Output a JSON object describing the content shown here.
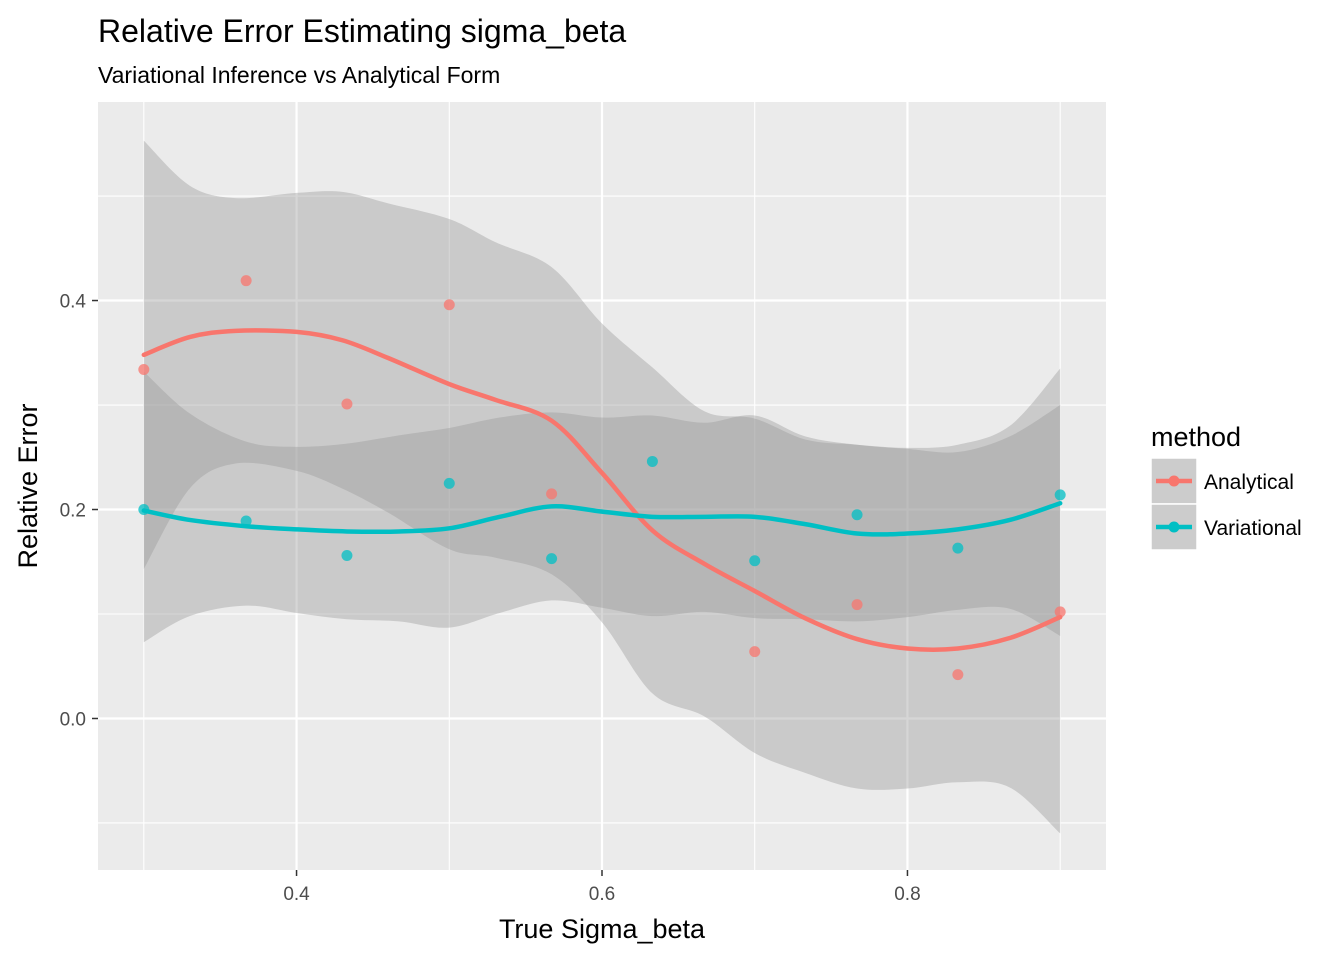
{
  "chart_data": {
    "type": "scatter",
    "title": "Relative Error Estimating sigma_beta",
    "subtitle": "Variational Inference vs Analytical Form",
    "xlabel": "True Sigma_beta",
    "ylabel": "Relative Error",
    "xlim": [
      0.27,
      0.93
    ],
    "ylim": [
      -0.145,
      0.59
    ],
    "x_ticks": [
      0.4,
      0.6,
      0.8
    ],
    "x_tick_labels": [
      "0.4",
      "0.6",
      "0.8"
    ],
    "y_ticks": [
      0.0,
      0.2,
      0.4
    ],
    "y_tick_labels": [
      "0.0",
      "0.2",
      "0.4"
    ],
    "grid": true,
    "background_color": "#ebebeb",
    "legend": {
      "title": "method",
      "position": "right",
      "entries": [
        "Analytical",
        "Variational"
      ]
    },
    "series": [
      {
        "name": "Analytical",
        "color": "#f8766d",
        "points": [
          {
            "x": 0.3,
            "y": 0.334
          },
          {
            "x": 0.367,
            "y": 0.419
          },
          {
            "x": 0.433,
            "y": 0.301
          },
          {
            "x": 0.5,
            "y": 0.396
          },
          {
            "x": 0.567,
            "y": 0.215
          },
          {
            "x": 0.7,
            "y": 0.064
          },
          {
            "x": 0.767,
            "y": 0.109
          },
          {
            "x": 0.833,
            "y": 0.042
          },
          {
            "x": 0.9,
            "y": 0.102
          }
        ],
        "smooth": {
          "x": [
            0.3,
            0.33,
            0.36,
            0.4,
            0.43,
            0.46,
            0.5,
            0.53,
            0.567,
            0.6,
            0.633,
            0.667,
            0.7,
            0.733,
            0.767,
            0.8,
            0.833,
            0.867,
            0.9
          ],
          "y": [
            0.348,
            0.365,
            0.371,
            0.37,
            0.362,
            0.345,
            0.32,
            0.305,
            0.285,
            0.235,
            0.18,
            0.148,
            0.122,
            0.096,
            0.076,
            0.067,
            0.067,
            0.077,
            0.097
          ],
          "upper": [
            0.553,
            0.51,
            0.498,
            0.503,
            0.504,
            0.493,
            0.478,
            0.456,
            0.432,
            0.378,
            0.336,
            0.294,
            0.287,
            0.267,
            0.262,
            0.259,
            0.262,
            0.28,
            0.335
          ],
          "lower": [
            0.143,
            0.22,
            0.244,
            0.237,
            0.22,
            0.197,
            0.162,
            0.154,
            0.138,
            0.092,
            0.024,
            0.002,
            -0.033,
            -0.052,
            -0.067,
            -0.067,
            -0.061,
            -0.066,
            -0.11
          ]
        }
      },
      {
        "name": "Variational",
        "color": "#00bfc4",
        "points": [
          {
            "x": 0.3,
            "y": 0.2
          },
          {
            "x": 0.367,
            "y": 0.189
          },
          {
            "x": 0.433,
            "y": 0.156
          },
          {
            "x": 0.5,
            "y": 0.225
          },
          {
            "x": 0.567,
            "y": 0.153
          },
          {
            "x": 0.633,
            "y": 0.246
          },
          {
            "x": 0.7,
            "y": 0.151
          },
          {
            "x": 0.767,
            "y": 0.195
          },
          {
            "x": 0.833,
            "y": 0.163
          },
          {
            "x": 0.9,
            "y": 0.214
          }
        ],
        "smooth": {
          "x": [
            0.3,
            0.33,
            0.367,
            0.4,
            0.433,
            0.467,
            0.5,
            0.533,
            0.567,
            0.6,
            0.633,
            0.667,
            0.7,
            0.733,
            0.767,
            0.8,
            0.833,
            0.867,
            0.9
          ],
          "y": [
            0.199,
            0.19,
            0.184,
            0.181,
            0.179,
            0.179,
            0.182,
            0.193,
            0.203,
            0.198,
            0.193,
            0.193,
            0.193,
            0.186,
            0.177,
            0.177,
            0.181,
            0.19,
            0.206
          ],
          "upper": [
            0.332,
            0.292,
            0.265,
            0.26,
            0.263,
            0.271,
            0.278,
            0.288,
            0.293,
            0.288,
            0.29,
            0.283,
            0.29,
            0.27,
            0.262,
            0.258,
            0.255,
            0.27,
            0.3
          ],
          "lower": [
            0.073,
            0.098,
            0.108,
            0.101,
            0.095,
            0.093,
            0.087,
            0.101,
            0.113,
            0.106,
            0.098,
            0.102,
            0.096,
            0.095,
            0.093,
            0.097,
            0.104,
            0.105,
            0.079
          ]
        }
      }
    ]
  }
}
